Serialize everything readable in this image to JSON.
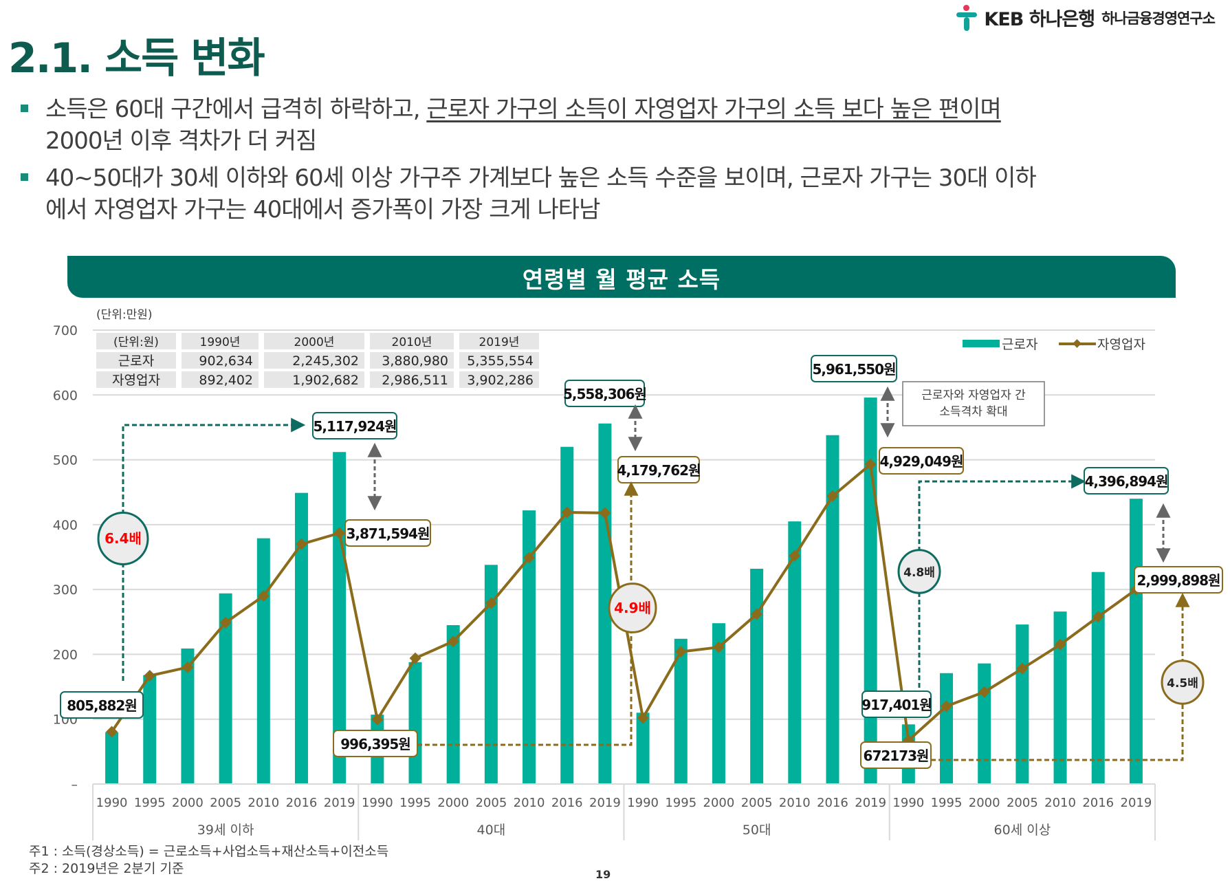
{
  "header": {
    "logo_text": "KEB 하나은행",
    "logo_sub": "하나금융경영연구소",
    "title": "2.1. 소득 변화"
  },
  "bullets": [
    {
      "plain": "소득은 60대 구간에서 급격히 하락하고, ",
      "underlined": "근로자 가구의 소득이 자영업자 가구의 소득 보다 높은 편이며",
      "line2": "2000년 이후 격차가 더 커짐"
    },
    {
      "line1": "40~50대가 30세 이하와 60세 이상 가구주 가계보다 높은 소득 수준을 보이며, 근로자 가구는 30대 이하",
      "line2": "에서 자영업자 가구는 40대에서 증가폭이 가장 크게 나타남"
    }
  ],
  "chart_banner": "연령별 월 평균 소득",
  "chart_data": {
    "type": "bar",
    "title": "연령별 월 평균 소득",
    "unit_label": "(단위:만원)",
    "ylim": [
      0,
      700
    ],
    "yticks": [
      "–",
      "100",
      "200",
      "300",
      "400",
      "500",
      "600",
      "700"
    ],
    "ytick_values": [
      0,
      100,
      200,
      300,
      400,
      500,
      600,
      700
    ],
    "grid": true,
    "legend_position": "top-right",
    "groups": [
      "39세 이하",
      "40대",
      "50대",
      "60세 이상"
    ],
    "categories": [
      "1990",
      "1995",
      "2000",
      "2005",
      "2010",
      "2016",
      "2019"
    ],
    "series": [
      {
        "name": "근로자",
        "kind": "bar",
        "color": "#00b09b",
        "values": [
          [
            80,
            168,
            209,
            294,
            379,
            449,
            512
          ],
          [
            107,
            188,
            245,
            338,
            422,
            520,
            556
          ],
          [
            110,
            224,
            248,
            332,
            405,
            538,
            596
          ],
          [
            92,
            171,
            186,
            246,
            266,
            327,
            440
          ]
        ]
      },
      {
        "name": "자영업자",
        "kind": "line",
        "color": "#8b6c1c",
        "values": [
          [
            80.6,
            167,
            180,
            249,
            290,
            370,
            387
          ],
          [
            99.6,
            194,
            220,
            279,
            349,
            419,
            418
          ],
          [
            102,
            204,
            211,
            262,
            352,
            444,
            493
          ],
          [
            67.2,
            120,
            142,
            178,
            215,
            258,
            300
          ]
        ]
      }
    ],
    "table": {
      "headers": [
        "(단위:원)",
        "1990년",
        "2000년",
        "2010년",
        "2019년"
      ],
      "rows": [
        [
          "근로자",
          "902,634",
          "2,245,302",
          "3,880,980",
          "5,355,554"
        ],
        [
          "자영업자",
          "892,402",
          "1,902,682",
          "2,986,511",
          "3,902,286"
        ]
      ]
    },
    "callouts": {
      "g1_worker_2019": "5,117,924원",
      "g1_self_2019": "3,871,594원",
      "g1_start": "805,882원",
      "g1_ratio": "6.4배",
      "g2_worker_2019": "5,558,306원",
      "g2_self_2019": "4,179,762원",
      "g2_start": "996,395원",
      "g2_ratio": "4.9배",
      "g3_worker_2019": "5,961,550원",
      "g3_self_2019": "4,929,049원",
      "gap_note_line1": "근로자와 자영업자 간",
      "gap_note_line2": "소득격차 확대",
      "g4_worker_2019": "4,396,894원",
      "g4_self_2019": "2,999,898원",
      "g4_worker_start": "917,401원",
      "g4_self_start": "672173원",
      "g4_worker_ratio": "4.8배",
      "g4_self_ratio": "4.5배"
    }
  },
  "footnotes": [
    "주1 : 소득(경상소득) = 근로소득+사업소득+재산소득+이전소득",
    "주2 : 2019년은 2분기 기준"
  ],
  "page_number": "19"
}
